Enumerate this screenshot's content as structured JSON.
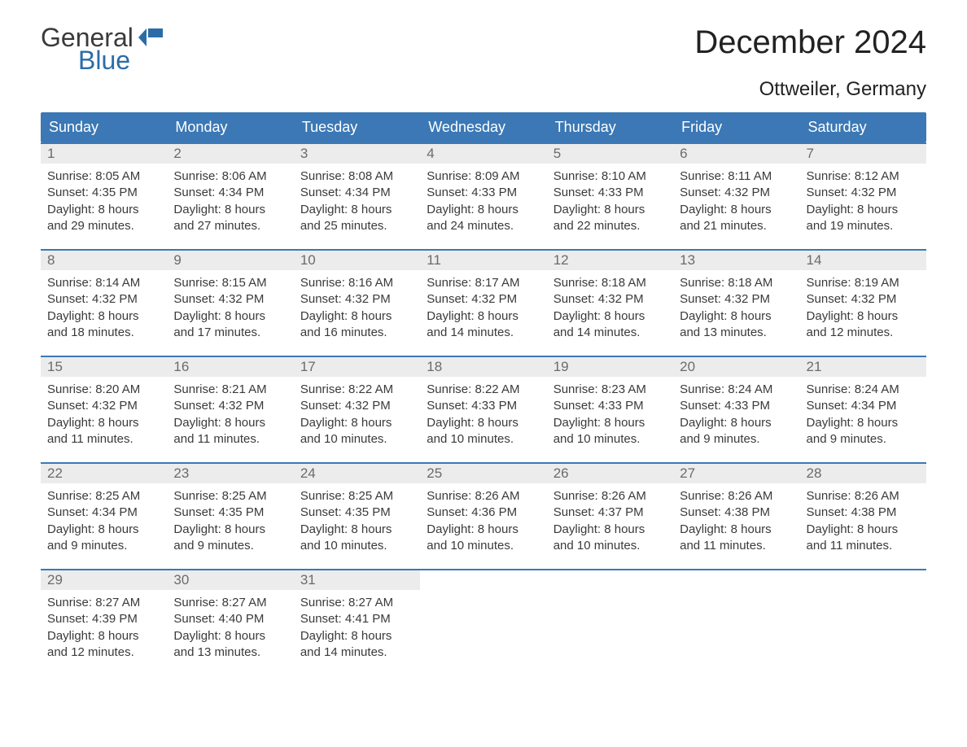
{
  "brand": {
    "word1": "General",
    "word2": "Blue",
    "flag_color": "#2b6ca8"
  },
  "title": "December 2024",
  "location": "Ottweiler, Germany",
  "colors": {
    "header_bg": "#3b78b5",
    "header_text": "#ffffff",
    "day_bar_bg": "#ececec",
    "day_bar_text": "#6b6b6b",
    "body_text": "#3a3a3a",
    "row_border": "#3b78b5",
    "page_bg": "#ffffff"
  },
  "typography": {
    "title_fontsize": 40,
    "location_fontsize": 24,
    "weekday_fontsize": 18,
    "daynum_fontsize": 17,
    "body_fontsize": 15
  },
  "weekdays": [
    "Sunday",
    "Monday",
    "Tuesday",
    "Wednesday",
    "Thursday",
    "Friday",
    "Saturday"
  ],
  "labels": {
    "sunrise": "Sunrise:",
    "sunset": "Sunset:",
    "daylight": "Daylight:"
  },
  "weeks": [
    [
      {
        "day": "1",
        "sunrise": "8:05 AM",
        "sunset": "4:35 PM",
        "daylight": "8 hours and 29 minutes."
      },
      {
        "day": "2",
        "sunrise": "8:06 AM",
        "sunset": "4:34 PM",
        "daylight": "8 hours and 27 minutes."
      },
      {
        "day": "3",
        "sunrise": "8:08 AM",
        "sunset": "4:34 PM",
        "daylight": "8 hours and 25 minutes."
      },
      {
        "day": "4",
        "sunrise": "8:09 AM",
        "sunset": "4:33 PM",
        "daylight": "8 hours and 24 minutes."
      },
      {
        "day": "5",
        "sunrise": "8:10 AM",
        "sunset": "4:33 PM",
        "daylight": "8 hours and 22 minutes."
      },
      {
        "day": "6",
        "sunrise": "8:11 AM",
        "sunset": "4:32 PM",
        "daylight": "8 hours and 21 minutes."
      },
      {
        "day": "7",
        "sunrise": "8:12 AM",
        "sunset": "4:32 PM",
        "daylight": "8 hours and 19 minutes."
      }
    ],
    [
      {
        "day": "8",
        "sunrise": "8:14 AM",
        "sunset": "4:32 PM",
        "daylight": "8 hours and 18 minutes."
      },
      {
        "day": "9",
        "sunrise": "8:15 AM",
        "sunset": "4:32 PM",
        "daylight": "8 hours and 17 minutes."
      },
      {
        "day": "10",
        "sunrise": "8:16 AM",
        "sunset": "4:32 PM",
        "daylight": "8 hours and 16 minutes."
      },
      {
        "day": "11",
        "sunrise": "8:17 AM",
        "sunset": "4:32 PM",
        "daylight": "8 hours and 14 minutes."
      },
      {
        "day": "12",
        "sunrise": "8:18 AM",
        "sunset": "4:32 PM",
        "daylight": "8 hours and 14 minutes."
      },
      {
        "day": "13",
        "sunrise": "8:18 AM",
        "sunset": "4:32 PM",
        "daylight": "8 hours and 13 minutes."
      },
      {
        "day": "14",
        "sunrise": "8:19 AM",
        "sunset": "4:32 PM",
        "daylight": "8 hours and 12 minutes."
      }
    ],
    [
      {
        "day": "15",
        "sunrise": "8:20 AM",
        "sunset": "4:32 PM",
        "daylight": "8 hours and 11 minutes."
      },
      {
        "day": "16",
        "sunrise": "8:21 AM",
        "sunset": "4:32 PM",
        "daylight": "8 hours and 11 minutes."
      },
      {
        "day": "17",
        "sunrise": "8:22 AM",
        "sunset": "4:32 PM",
        "daylight": "8 hours and 10 minutes."
      },
      {
        "day": "18",
        "sunrise": "8:22 AM",
        "sunset": "4:33 PM",
        "daylight": "8 hours and 10 minutes."
      },
      {
        "day": "19",
        "sunrise": "8:23 AM",
        "sunset": "4:33 PM",
        "daylight": "8 hours and 10 minutes."
      },
      {
        "day": "20",
        "sunrise": "8:24 AM",
        "sunset": "4:33 PM",
        "daylight": "8 hours and 9 minutes."
      },
      {
        "day": "21",
        "sunrise": "8:24 AM",
        "sunset": "4:34 PM",
        "daylight": "8 hours and 9 minutes."
      }
    ],
    [
      {
        "day": "22",
        "sunrise": "8:25 AM",
        "sunset": "4:34 PM",
        "daylight": "8 hours and 9 minutes."
      },
      {
        "day": "23",
        "sunrise": "8:25 AM",
        "sunset": "4:35 PM",
        "daylight": "8 hours and 9 minutes."
      },
      {
        "day": "24",
        "sunrise": "8:25 AM",
        "sunset": "4:35 PM",
        "daylight": "8 hours and 10 minutes."
      },
      {
        "day": "25",
        "sunrise": "8:26 AM",
        "sunset": "4:36 PM",
        "daylight": "8 hours and 10 minutes."
      },
      {
        "day": "26",
        "sunrise": "8:26 AM",
        "sunset": "4:37 PM",
        "daylight": "8 hours and 10 minutes."
      },
      {
        "day": "27",
        "sunrise": "8:26 AM",
        "sunset": "4:38 PM",
        "daylight": "8 hours and 11 minutes."
      },
      {
        "day": "28",
        "sunrise": "8:26 AM",
        "sunset": "4:38 PM",
        "daylight": "8 hours and 11 minutes."
      }
    ],
    [
      {
        "day": "29",
        "sunrise": "8:27 AM",
        "sunset": "4:39 PM",
        "daylight": "8 hours and 12 minutes."
      },
      {
        "day": "30",
        "sunrise": "8:27 AM",
        "sunset": "4:40 PM",
        "daylight": "8 hours and 13 minutes."
      },
      {
        "day": "31",
        "sunrise": "8:27 AM",
        "sunset": "4:41 PM",
        "daylight": "8 hours and 14 minutes."
      },
      null,
      null,
      null,
      null
    ]
  ]
}
